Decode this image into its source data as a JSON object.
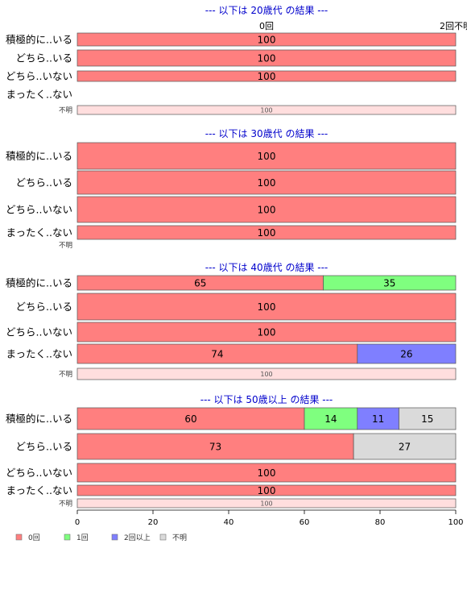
{
  "colors": {
    "0回": "#ff7f7f",
    "1回": "#7fff7f",
    "2回以上": "#7f7fff",
    "不明": "#dadada",
    "不明_row": "#ffdede",
    "title": "#0000cc"
  },
  "chart_data": {
    "type": "bar",
    "orientation": "horizontal",
    "stacked": true,
    "categories_legend": [
      "0回",
      "1回",
      "2回以上",
      "不明"
    ],
    "xlim": [
      0,
      100
    ],
    "xticks": [
      "0",
      "20",
      "40",
      "60",
      "80",
      "100"
    ],
    "top_column_header": "0回",
    "top_right_overlap_text": "2回不明",
    "sections": [
      {
        "title": "--- 以下は 20歳代 の結果 ---",
        "rows": [
          {
            "label": "積極的に..いる",
            "small": false,
            "segments": [
              {
                "key": "0回",
                "value": 100,
                "text": "100"
              }
            ]
          },
          {
            "label": "どちら..いる",
            "small": false,
            "segments": [
              {
                "key": "0回",
                "value": 100,
                "text": "100"
              }
            ]
          },
          {
            "label": "どちら..いない",
            "small": false,
            "segments": [
              {
                "key": "0回",
                "value": 100,
                "text": "100"
              }
            ]
          },
          {
            "label": "まったく..ない",
            "small": false,
            "segments": []
          },
          {
            "label": "不明",
            "small": true,
            "segments": [
              {
                "key": "不明_row",
                "value": 100,
                "text": "100"
              }
            ]
          }
        ]
      },
      {
        "title": "--- 以下は 30歳代 の結果 ---",
        "rows": [
          {
            "label": "積極的に..いる",
            "small": false,
            "segments": [
              {
                "key": "0回",
                "value": 100,
                "text": "100"
              }
            ]
          },
          {
            "label": "どちら..いる",
            "small": false,
            "segments": [
              {
                "key": "0回",
                "value": 100,
                "text": "100"
              }
            ]
          },
          {
            "label": "どちら..いない",
            "small": false,
            "segments": [
              {
                "key": "0回",
                "value": 100,
                "text": "100"
              }
            ]
          },
          {
            "label": "まったく..ない",
            "small": false,
            "segments": [
              {
                "key": "0回",
                "value": 100,
                "text": "100"
              }
            ]
          },
          {
            "label": "不明",
            "small": true,
            "segments": []
          }
        ]
      },
      {
        "title": "--- 以下は 40歳代 の結果 ---",
        "rows": [
          {
            "label": "積極的に..いる",
            "small": false,
            "segments": [
              {
                "key": "0回",
                "value": 65,
                "text": "65"
              },
              {
                "key": "1回",
                "value": 35,
                "text": "35"
              }
            ]
          },
          {
            "label": "どちら..いる",
            "small": false,
            "segments": [
              {
                "key": "0回",
                "value": 100,
                "text": "100"
              }
            ]
          },
          {
            "label": "どちら..いない",
            "small": false,
            "segments": [
              {
                "key": "0回",
                "value": 100,
                "text": "100"
              }
            ]
          },
          {
            "label": "まったく..ない",
            "small": false,
            "segments": [
              {
                "key": "0回",
                "value": 74,
                "text": "74"
              },
              {
                "key": "2回以上",
                "value": 26,
                "text": "26"
              }
            ]
          },
          {
            "label": "不明",
            "small": true,
            "segments": [
              {
                "key": "不明_row",
                "value": 100,
                "text": "100"
              }
            ]
          }
        ]
      },
      {
        "title": "--- 以下は 50歳以上 の結果 ---",
        "rows": [
          {
            "label": "積極的に..いる",
            "small": false,
            "segments": [
              {
                "key": "0回",
                "value": 60,
                "text": "60"
              },
              {
                "key": "1回",
                "value": 14,
                "text": "14"
              },
              {
                "key": "2回以上",
                "value": 11,
                "text": "11"
              },
              {
                "key": "不明",
                "value": 15,
                "text": "15"
              }
            ]
          },
          {
            "label": "どちら..いる",
            "small": false,
            "segments": [
              {
                "key": "0回",
                "value": 73,
                "text": "73"
              },
              {
                "key": "不明",
                "value": 27,
                "text": "27"
              }
            ]
          },
          {
            "label": "どちら..いない",
            "small": false,
            "segments": [
              {
                "key": "0回",
                "value": 100,
                "text": "100"
              }
            ]
          },
          {
            "label": "まったく..ない",
            "small": false,
            "segments": [
              {
                "key": "0回",
                "value": 100,
                "text": "100"
              }
            ]
          },
          {
            "label": "不明",
            "small": true,
            "segments": [
              {
                "key": "不明_row",
                "value": 100,
                "text": "100"
              }
            ]
          }
        ]
      }
    ]
  }
}
